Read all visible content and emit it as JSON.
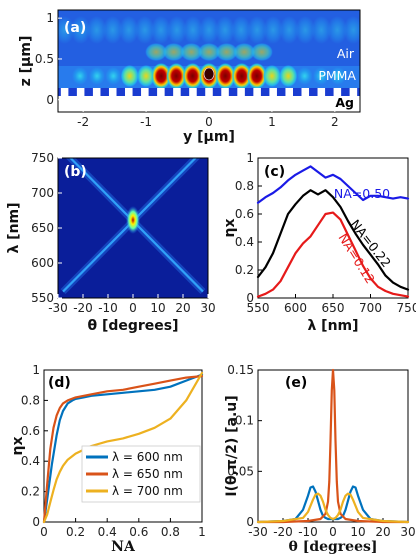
{
  "chart_data": [
    {
      "id": "a",
      "type": "heatmap",
      "panel_label": "(a)",
      "xlabel": "y [μm]",
      "ylabel": "z [μm]",
      "xlim": [
        -2.4,
        2.4
      ],
      "ylim": [
        -0.15,
        1.1
      ],
      "xticks": [
        "-2",
        "-1",
        "0",
        "1",
        "2"
      ],
      "xtick_values": [
        -2,
        -1,
        0,
        1,
        2
      ],
      "yticks": [
        "0",
        "0.5",
        "1"
      ],
      "ytick_values": [
        0,
        0.5,
        1
      ],
      "annotations": [
        "Air",
        "PMMA",
        "Ag"
      ],
      "colormap": "jet"
    },
    {
      "id": "b",
      "type": "heatmap",
      "panel_label": "(b)",
      "xlabel": "θ [degrees]",
      "ylabel": "λ [nm]",
      "xlim": [
        -30,
        30
      ],
      "ylim": [
        550,
        750
      ],
      "xticks": [
        "-30",
        "-20",
        "-10",
        "0",
        "10",
        "20",
        "30"
      ],
      "xtick_values": [
        -30,
        -20,
        -10,
        0,
        10,
        20,
        30
      ],
      "yticks": [
        "550",
        "600",
        "650",
        "700",
        "750"
      ],
      "ytick_values": [
        550,
        600,
        650,
        700,
        750
      ],
      "colormap": "jet"
    },
    {
      "id": "c",
      "type": "line",
      "panel_label": "(c)",
      "xlabel": "λ [nm]",
      "ylabel": "ηx",
      "xlim": [
        550,
        750
      ],
      "ylim": [
        0,
        1
      ],
      "xticks": [
        "550",
        "600",
        "650",
        "700",
        "750"
      ],
      "xtick_values": [
        550,
        600,
        650,
        700,
        750
      ],
      "yticks": [
        "0",
        "0.2",
        "0.4",
        "0.6",
        "0.8",
        "1"
      ],
      "ytick_values": [
        0,
        0.2,
        0.4,
        0.6,
        0.8,
        1
      ],
      "series": [
        {
          "name": "NA=0.50",
          "color": "#1a1ae6",
          "x": [
            550,
            560,
            570,
            580,
            590,
            600,
            610,
            620,
            630,
            640,
            650,
            660,
            670,
            680,
            690,
            700,
            710,
            720,
            730,
            740,
            750
          ],
          "y": [
            0.68,
            0.72,
            0.75,
            0.79,
            0.84,
            0.88,
            0.91,
            0.94,
            0.9,
            0.86,
            0.88,
            0.85,
            0.8,
            0.75,
            0.7,
            0.73,
            0.73,
            0.72,
            0.71,
            0.72,
            0.71
          ]
        },
        {
          "name": "NA=0.22",
          "color": "#000000",
          "x": [
            550,
            560,
            570,
            580,
            590,
            600,
            610,
            620,
            630,
            640,
            650,
            660,
            670,
            680,
            690,
            700,
            710,
            720,
            730,
            740,
            750
          ],
          "y": [
            0.15,
            0.22,
            0.32,
            0.46,
            0.6,
            0.67,
            0.73,
            0.77,
            0.74,
            0.77,
            0.72,
            0.65,
            0.55,
            0.46,
            0.38,
            0.31,
            0.24,
            0.16,
            0.11,
            0.08,
            0.06
          ]
        },
        {
          "name": "NA=0.12",
          "color": "#e61a1a",
          "x": [
            550,
            560,
            570,
            580,
            590,
            600,
            610,
            620,
            630,
            640,
            650,
            660,
            670,
            680,
            690,
            700,
            710,
            720,
            730,
            740,
            750
          ],
          "y": [
            0.01,
            0.03,
            0.06,
            0.12,
            0.22,
            0.32,
            0.39,
            0.44,
            0.52,
            0.6,
            0.61,
            0.56,
            0.45,
            0.34,
            0.23,
            0.14,
            0.08,
            0.05,
            0.03,
            0.02,
            0.01
          ]
        }
      ]
    },
    {
      "id": "d",
      "type": "line",
      "panel_label": "(d)",
      "xlabel": "NA",
      "ylabel": "ηx",
      "xlim": [
        0,
        1
      ],
      "ylim": [
        0,
        1
      ],
      "xticks": [
        "0",
        "0.2",
        "0.4",
        "0.6",
        "0.8",
        "1"
      ],
      "xtick_values": [
        0,
        0.2,
        0.4,
        0.6,
        0.8,
        1
      ],
      "yticks": [
        "0",
        "0.2",
        "0.4",
        "0.6",
        "0.8",
        "1"
      ],
      "ytick_values": [
        0,
        0.2,
        0.4,
        0.6,
        0.8,
        1
      ],
      "series": [
        {
          "name": "λ = 600 nm",
          "color": "#0072bd",
          "x": [
            0,
            0.02,
            0.05,
            0.08,
            0.1,
            0.12,
            0.15,
            0.18,
            0.2,
            0.25,
            0.3,
            0.4,
            0.5,
            0.6,
            0.7,
            0.8,
            0.9,
            1.0
          ],
          "y": [
            0,
            0.15,
            0.38,
            0.57,
            0.67,
            0.73,
            0.78,
            0.8,
            0.81,
            0.82,
            0.83,
            0.84,
            0.85,
            0.86,
            0.87,
            0.89,
            0.93,
            0.97
          ]
        },
        {
          "name": "λ = 650 nm",
          "color": "#d95319",
          "x": [
            0,
            0.02,
            0.04,
            0.06,
            0.08,
            0.1,
            0.12,
            0.15,
            0.2,
            0.3,
            0.4,
            0.5,
            0.6,
            0.7,
            0.8,
            0.9,
            1.0
          ],
          "y": [
            0,
            0.25,
            0.48,
            0.62,
            0.7,
            0.75,
            0.78,
            0.8,
            0.82,
            0.84,
            0.86,
            0.87,
            0.89,
            0.91,
            0.93,
            0.95,
            0.96
          ]
        },
        {
          "name": "λ = 700 nm",
          "color": "#edb120",
          "x": [
            0,
            0.02,
            0.04,
            0.06,
            0.08,
            0.1,
            0.12,
            0.15,
            0.2,
            0.3,
            0.4,
            0.5,
            0.6,
            0.7,
            0.8,
            0.9,
            1.0
          ],
          "y": [
            0,
            0.05,
            0.13,
            0.21,
            0.28,
            0.33,
            0.37,
            0.41,
            0.45,
            0.5,
            0.53,
            0.55,
            0.58,
            0.62,
            0.68,
            0.8,
            0.98
          ]
        }
      ]
    },
    {
      "id": "e",
      "type": "line",
      "panel_label": "(e)",
      "xlabel": "θ [degrees]",
      "ylabel": "I(θ,π/2) [a.u]",
      "xlim": [
        -30,
        30
      ],
      "ylim": [
        0,
        0.15
      ],
      "xticks": [
        "-30",
        "-20",
        "-10",
        "0",
        "10",
        "20",
        "30"
      ],
      "xtick_values": [
        -30,
        -20,
        -10,
        0,
        10,
        20,
        30
      ],
      "yticks": [
        "0",
        "0.05",
        "0.1",
        "0.15"
      ],
      "ytick_values": [
        0,
        0.05,
        0.1,
        0.15
      ],
      "series": [
        {
          "name": "λ = 600 nm",
          "color": "#0072bd",
          "x": [
            -30,
            -20,
            -15,
            -12,
            -10,
            -9,
            -8,
            -7,
            -6,
            -5,
            -4,
            -3,
            -2,
            -1,
            0,
            1,
            2,
            3,
            4,
            5,
            6,
            7,
            8,
            9,
            10,
            12,
            15,
            20,
            30
          ],
          "y": [
            0,
            0.001,
            0.003,
            0.012,
            0.026,
            0.034,
            0.035,
            0.03,
            0.021,
            0.012,
            0.006,
            0.004,
            0.003,
            0.003,
            0.003,
            0.003,
            0.003,
            0.004,
            0.006,
            0.012,
            0.021,
            0.03,
            0.035,
            0.034,
            0.026,
            0.012,
            0.003,
            0.001,
            0
          ]
        },
        {
          "name": "λ = 650 nm",
          "color": "#d95319",
          "x": [
            -30,
            -20,
            -10,
            -5,
            -3,
            -2,
            -1.5,
            -1,
            -0.5,
            0,
            0.5,
            1,
            1.5,
            2,
            3,
            5,
            10,
            20,
            30
          ],
          "y": [
            0,
            0,
            0.001,
            0.003,
            0.008,
            0.02,
            0.04,
            0.08,
            0.13,
            0.15,
            0.13,
            0.08,
            0.04,
            0.02,
            0.008,
            0.003,
            0.001,
            0,
            0
          ]
        },
        {
          "name": "λ = 700 nm",
          "color": "#edb120",
          "x": [
            -30,
            -20,
            -12,
            -10,
            -8,
            -7,
            -6,
            -5,
            -4,
            -3,
            -2,
            -1,
            0,
            1,
            2,
            3,
            4,
            5,
            6,
            7,
            8,
            10,
            12,
            20,
            30
          ],
          "y": [
            0,
            0.001,
            0.004,
            0.01,
            0.022,
            0.027,
            0.028,
            0.026,
            0.02,
            0.012,
            0.007,
            0.004,
            0.003,
            0.004,
            0.007,
            0.012,
            0.02,
            0.026,
            0.028,
            0.027,
            0.022,
            0.01,
            0.004,
            0.001,
            0
          ]
        }
      ]
    }
  ]
}
